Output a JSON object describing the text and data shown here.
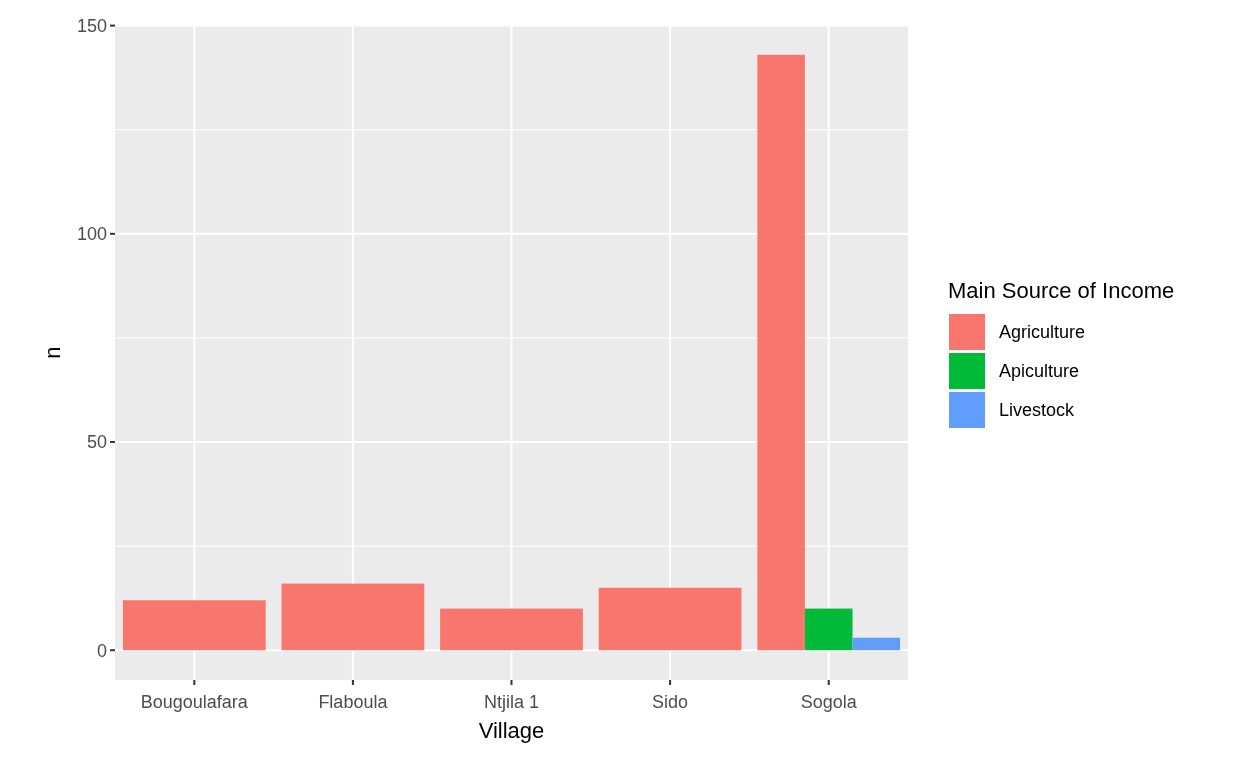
{
  "chart_data": {
    "type": "bar",
    "xlabel": "Village",
    "ylabel": "n",
    "legend_title": "Main Source of Income",
    "categories": [
      "Bougoulafara",
      "Flaboula",
      "Ntjila 1",
      "Sido",
      "Sogola"
    ],
    "series": [
      {
        "name": "Agriculture",
        "color": "#f8766d",
        "values": [
          12,
          16,
          10,
          15,
          143
        ]
      },
      {
        "name": "Apiculture",
        "color": "#00ba38",
        "values": [
          null,
          null,
          null,
          null,
          10
        ]
      },
      {
        "name": "Livestock",
        "color": "#619cff",
        "values": [
          null,
          null,
          null,
          null,
          3
        ]
      }
    ],
    "ylim": [
      -7.15,
      150.15
    ],
    "yticks": [
      0,
      50,
      100,
      150
    ],
    "grid": true,
    "legend": "right"
  }
}
